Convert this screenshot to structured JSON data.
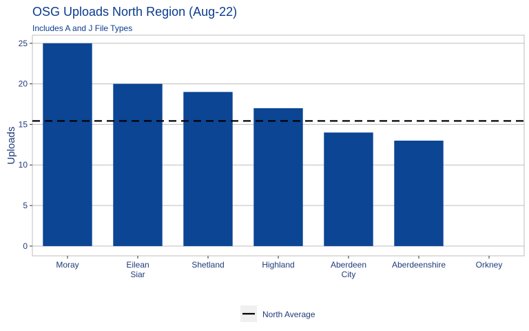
{
  "chart_data": {
    "type": "bar",
    "title": "OSG Uploads North Region (Aug-22)",
    "subtitle": "Includes A and J File Types",
    "xlabel": "",
    "ylabel": "Uploads",
    "categories": [
      [
        "Moray"
      ],
      [
        "Eilean",
        "Siar"
      ],
      [
        "Shetland"
      ],
      [
        "Highland"
      ],
      [
        "Aberdeen",
        "City"
      ],
      [
        "Aberdeenshire"
      ],
      [
        "Orkney"
      ]
    ],
    "values": [
      25,
      20,
      19,
      17,
      14,
      13,
      0
    ],
    "ylim": [
      -1.2,
      26
    ],
    "yticks": [
      0,
      5,
      10,
      15,
      20,
      25
    ],
    "grid": true,
    "bar_color": "#0b4594",
    "reference_line": {
      "name": "North Average",
      "value": 15.43,
      "style": "dashed",
      "color": "#000000"
    },
    "legend": {
      "position": "bottom",
      "entries": [
        "North Average"
      ]
    }
  }
}
